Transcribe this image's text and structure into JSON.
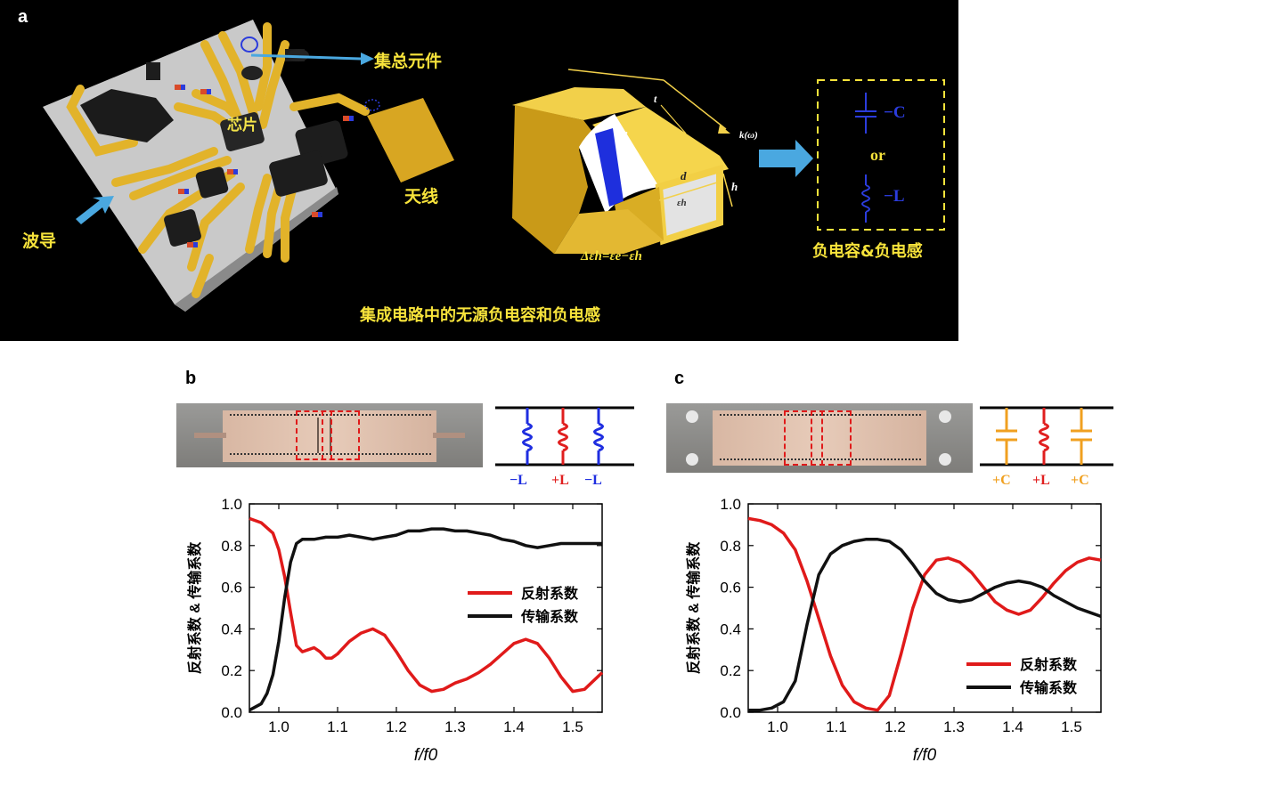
{
  "panel_a": {
    "letter": "a",
    "labels": {
      "lumped": "集总元件",
      "chip": "芯片",
      "antenna": "天线",
      "waveguide": "波导",
      "bottom_caption": "集成电路中的无源负电容和负电感",
      "neg_label": "负电容&负电感",
      "cap_label": "−C",
      "or": "or",
      "ind_label": "−L",
      "eps_e": "εe",
      "eps_h": "εh",
      "t": "t",
      "d": "d",
      "h": "h",
      "k": "k(ω)",
      "delta_eq": "Δεh=εe−εh"
    },
    "colors": {
      "yellow": "#f7e33b",
      "blue_arrow": "#4aa8e0",
      "gold": "#e7b52a",
      "component_blue": "#2233dd"
    }
  },
  "panel_b": {
    "letter": "b",
    "circuit_labels": [
      "−L",
      "+L",
      "−L"
    ],
    "circuit_colors": [
      "#1f2ee0",
      "#e01f1f",
      "#1f2ee0"
    ],
    "chart_data": {
      "type": "line",
      "xlabel": "f/f0",
      "ylabel": "反射系数 & 传输系数",
      "xlim": [
        0.95,
        1.55
      ],
      "ylim": [
        0.0,
        1.0
      ],
      "xticks": [
        "1.0",
        "1.1",
        "1.2",
        "1.3",
        "1.4",
        "1.5"
      ],
      "yticks": [
        "0.0",
        "0.2",
        "0.4",
        "0.6",
        "0.8",
        "1.0"
      ],
      "legend_position": "right-middle",
      "series": [
        {
          "name": "反射系数",
          "color": "#e01a1a",
          "x": [
            0.95,
            0.97,
            0.99,
            1.0,
            1.01,
            1.02,
            1.03,
            1.04,
            1.05,
            1.06,
            1.07,
            1.08,
            1.09,
            1.1,
            1.12,
            1.14,
            1.16,
            1.18,
            1.2,
            1.22,
            1.24,
            1.26,
            1.28,
            1.3,
            1.32,
            1.34,
            1.36,
            1.38,
            1.4,
            1.42,
            1.44,
            1.46,
            1.48,
            1.5,
            1.52,
            1.55
          ],
          "y": [
            0.93,
            0.91,
            0.86,
            0.78,
            0.65,
            0.48,
            0.32,
            0.29,
            0.3,
            0.31,
            0.29,
            0.26,
            0.26,
            0.28,
            0.34,
            0.38,
            0.4,
            0.37,
            0.29,
            0.2,
            0.13,
            0.1,
            0.11,
            0.14,
            0.16,
            0.19,
            0.23,
            0.28,
            0.33,
            0.35,
            0.33,
            0.26,
            0.17,
            0.1,
            0.11,
            0.19
          ]
        },
        {
          "name": "传输系数",
          "color": "#111111",
          "x": [
            0.95,
            0.97,
            0.98,
            0.99,
            1.0,
            1.01,
            1.02,
            1.03,
            1.04,
            1.06,
            1.08,
            1.1,
            1.12,
            1.14,
            1.16,
            1.18,
            1.2,
            1.22,
            1.24,
            1.26,
            1.28,
            1.3,
            1.32,
            1.34,
            1.36,
            1.38,
            1.4,
            1.42,
            1.44,
            1.46,
            1.48,
            1.5,
            1.52,
            1.55
          ],
          "y": [
            0.01,
            0.04,
            0.09,
            0.18,
            0.34,
            0.55,
            0.72,
            0.81,
            0.83,
            0.83,
            0.84,
            0.84,
            0.85,
            0.84,
            0.83,
            0.84,
            0.85,
            0.87,
            0.87,
            0.88,
            0.88,
            0.87,
            0.87,
            0.86,
            0.85,
            0.83,
            0.82,
            0.8,
            0.79,
            0.8,
            0.81,
            0.81,
            0.81,
            0.81
          ]
        }
      ]
    }
  },
  "panel_c": {
    "letter": "c",
    "circuit_labels": [
      "+C",
      "+L",
      "+C"
    ],
    "circuit_colors": [
      "#f0a020",
      "#e01f1f",
      "#f0a020"
    ],
    "chart_data": {
      "type": "line",
      "xlabel": "f/f0",
      "ylabel": "反射系数 & 传输系数",
      "xlim": [
        0.95,
        1.55
      ],
      "ylim": [
        0.0,
        1.0
      ],
      "xticks": [
        "1.0",
        "1.1",
        "1.2",
        "1.3",
        "1.4",
        "1.5"
      ],
      "yticks": [
        "0.0",
        "0.2",
        "0.4",
        "0.6",
        "0.8",
        "1.0"
      ],
      "legend_position": "bottom-right",
      "series": [
        {
          "name": "反射系数",
          "color": "#e01a1a",
          "x": [
            0.95,
            0.97,
            0.99,
            1.01,
            1.03,
            1.05,
            1.07,
            1.09,
            1.11,
            1.13,
            1.15,
            1.17,
            1.19,
            1.21,
            1.23,
            1.25,
            1.27,
            1.29,
            1.31,
            1.33,
            1.35,
            1.37,
            1.39,
            1.41,
            1.43,
            1.45,
            1.47,
            1.49,
            1.51,
            1.53,
            1.55
          ],
          "y": [
            0.93,
            0.92,
            0.9,
            0.86,
            0.78,
            0.63,
            0.45,
            0.27,
            0.13,
            0.05,
            0.02,
            0.01,
            0.08,
            0.28,
            0.5,
            0.66,
            0.73,
            0.74,
            0.72,
            0.67,
            0.6,
            0.53,
            0.49,
            0.47,
            0.49,
            0.55,
            0.62,
            0.68,
            0.72,
            0.74,
            0.73
          ]
        },
        {
          "name": "传输系数",
          "color": "#111111",
          "x": [
            0.95,
            0.97,
            0.99,
            1.01,
            1.03,
            1.05,
            1.07,
            1.09,
            1.11,
            1.13,
            1.15,
            1.17,
            1.19,
            1.21,
            1.23,
            1.25,
            1.27,
            1.29,
            1.31,
            1.33,
            1.35,
            1.37,
            1.39,
            1.41,
            1.43,
            1.45,
            1.47,
            1.49,
            1.51,
            1.53,
            1.55
          ],
          "y": [
            0.01,
            0.01,
            0.02,
            0.05,
            0.15,
            0.42,
            0.66,
            0.76,
            0.8,
            0.82,
            0.83,
            0.83,
            0.82,
            0.78,
            0.71,
            0.63,
            0.57,
            0.54,
            0.53,
            0.54,
            0.57,
            0.6,
            0.62,
            0.63,
            0.62,
            0.6,
            0.56,
            0.53,
            0.5,
            0.48,
            0.46
          ]
        }
      ]
    }
  }
}
